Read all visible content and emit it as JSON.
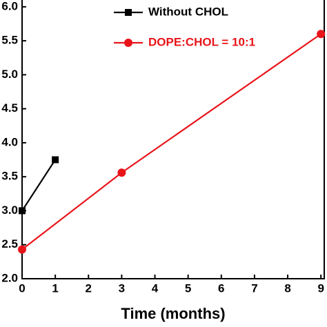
{
  "chart_data": {
    "type": "line",
    "x_label": "Time (months)",
    "series": [
      {
        "name": "Without CHOL",
        "color": "#000000",
        "marker": "square",
        "x": [
          0,
          1
        ],
        "values": [
          3.0,
          3.75
        ]
      },
      {
        "name": "DOPE:CHOL = 10:1",
        "color": "#e8141a",
        "marker": "circle",
        "x": [
          0,
          3,
          9
        ],
        "values": [
          2.43,
          3.56,
          5.6
        ]
      }
    ],
    "xlim": [
      0,
      9.1
    ],
    "xticks": [
      0,
      1,
      2,
      3,
      4,
      5,
      6,
      7,
      8,
      9
    ],
    "ylim": [
      2.0,
      6.1
    ],
    "yticks": [
      {
        "value": 2.0,
        "label": "2.0"
      },
      2.5,
      {
        "value": 3.0,
        "label": "3.0"
      },
      3.5,
      {
        "value": 4.0,
        "label": "4.0"
      },
      4.5,
      {
        "value": 5.0,
        "label": "5.0"
      },
      5.5,
      {
        "value": 6.0,
        "label": "6.0"
      }
    ],
    "grid": false,
    "legend": "upper left"
  }
}
